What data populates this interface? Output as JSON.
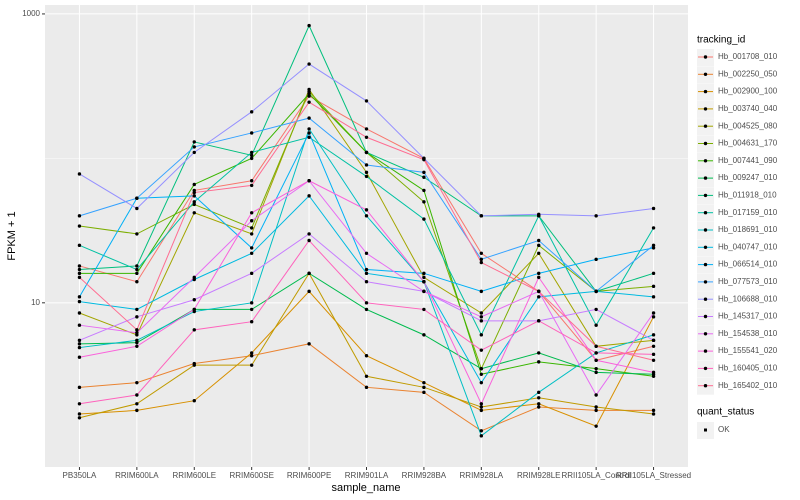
{
  "chart_data": {
    "type": "line",
    "x_label": "sample_name",
    "y_label": "FPKM + 1",
    "categories": [
      "PB350LA",
      "RRIM600LA",
      "RRIM600LE",
      "RRIM600SE",
      "RRIM600PE",
      "RRIM901LA",
      "RRIM928BA",
      "RRIM928LA",
      "RRIM928LE",
      "RRII105LA_Control",
      "RRII105LA_Stressed"
    ],
    "yscale": "log",
    "ylim": [
      0.73,
      1153
    ],
    "yticks": [
      10,
      1000
    ],
    "grid": true,
    "point_color": "#000000",
    "legend_title": "tracking_id",
    "legend_position": "right",
    "shape_legend_title": "quant_status",
    "shape_legend_items": [
      "OK"
    ],
    "series": [
      {
        "name": "Hb_001708_010",
        "color": "#F8766D",
        "values": [
          18,
          14,
          60,
          70,
          270,
          160,
          100,
          22,
          12,
          4,
          5
        ]
      },
      {
        "name": "Hb_002250_050",
        "color": "#EA8331",
        "values": [
          2.6,
          2.8,
          3.8,
          4.3,
          5.2,
          2.6,
          2.4,
          1.3,
          1.9,
          1.8,
          1.8
        ]
      },
      {
        "name": "Hb_002900_100",
        "color": "#D89000",
        "values": [
          1.7,
          1.8,
          2.1,
          4.5,
          12,
          4.3,
          2.8,
          1.8,
          2.0,
          1.4,
          8
        ]
      },
      {
        "name": "Hb_003740_040",
        "color": "#C09B00",
        "values": [
          1.6,
          2.0,
          3.7,
          3.7,
          16,
          3.1,
          2.6,
          1.9,
          2.2,
          1.9,
          1.7
        ]
      },
      {
        "name": "Hb_004525_080",
        "color": "#A3A500",
        "values": [
          8.5,
          6,
          42,
          30,
          300,
          80,
          15,
          8.5,
          22,
          5,
          5.5
        ]
      },
      {
        "name": "Hb_004631_170",
        "color": "#7CAE00",
        "values": [
          34,
          30,
          48,
          33,
          290,
          110,
          50,
          3.5,
          25,
          12,
          13
        ]
      },
      {
        "name": "Hb_007441_090",
        "color": "#39B600",
        "values": [
          16,
          16,
          66,
          100,
          280,
          110,
          60,
          3.2,
          3.9,
          3.5,
          3.1
        ]
      },
      {
        "name": "Hb_009247_010",
        "color": "#00BB4E",
        "values": [
          5.2,
          5.3,
          9,
          9,
          16,
          9,
          6,
          3.5,
          4.5,
          3.3,
          3.2
        ]
      },
      {
        "name": "Hb_011918_010",
        "color": "#00BF7D",
        "values": [
          17,
          18,
          130,
          105,
          830,
          110,
          74,
          40,
          40,
          12,
          16
        ]
      },
      {
        "name": "Hb_017159_010",
        "color": "#00C1A3",
        "values": [
          25,
          17,
          50,
          110,
          140,
          75,
          38,
          6,
          40,
          7,
          33
        ]
      },
      {
        "name": "Hb_018691_010",
        "color": "#00BFC4",
        "values": [
          4.9,
          5.5,
          8.7,
          10,
          160,
          40,
          14,
          1.2,
          2.4,
          4.5,
          6
        ]
      },
      {
        "name": "Hb_040747_010",
        "color": "#00BAE0",
        "values": [
          10.2,
          9,
          14.5,
          22,
          55,
          16,
          14,
          2.8,
          11,
          12,
          11
        ]
      },
      {
        "name": "Hb_066514_010",
        "color": "#00B0F6",
        "values": [
          11,
          53,
          55,
          24,
          150,
          17,
          16,
          12,
          16,
          20,
          24
        ]
      },
      {
        "name": "Hb_077573_010",
        "color": "#35A2FF",
        "values": [
          40,
          53,
          120,
          150,
          190,
          90,
          80,
          20,
          27,
          12,
          25
        ]
      },
      {
        "name": "Hb_106688_010",
        "color": "#9590FF",
        "values": [
          78,
          45,
          110,
          210,
          450,
          250,
          100,
          40,
          41,
          40,
          45
        ]
      },
      {
        "name": "Hb_145317_010",
        "color": "#C77CFF",
        "values": [
          5.5,
          8,
          10.5,
          16,
          30,
          14,
          12,
          7.5,
          7.5,
          9,
          5.5
        ]
      },
      {
        "name": "Hb_154538_010",
        "color": "#E76BF3",
        "values": [
          7,
          6.2,
          15,
          37,
          70,
          22,
          12,
          8,
          12,
          2.3,
          8.5
        ]
      },
      {
        "name": "Hb_155541_020",
        "color": "#FA62DB",
        "values": [
          4.2,
          5,
          9,
          42,
          70,
          44,
          14,
          2,
          15,
          4,
          3.3
        ]
      },
      {
        "name": "Hb_160405_010",
        "color": "#FF62BC",
        "values": [
          2.0,
          2.3,
          6.5,
          7.4,
          27,
          10,
          9,
          4.7,
          7.5,
          4.5,
          4.4
        ]
      },
      {
        "name": "Hb_165402_010",
        "color": "#FF6C91",
        "values": [
          15,
          6.5,
          58,
          65,
          245,
          140,
          98,
          19,
          12,
          5,
          4
        ]
      }
    ]
  }
}
